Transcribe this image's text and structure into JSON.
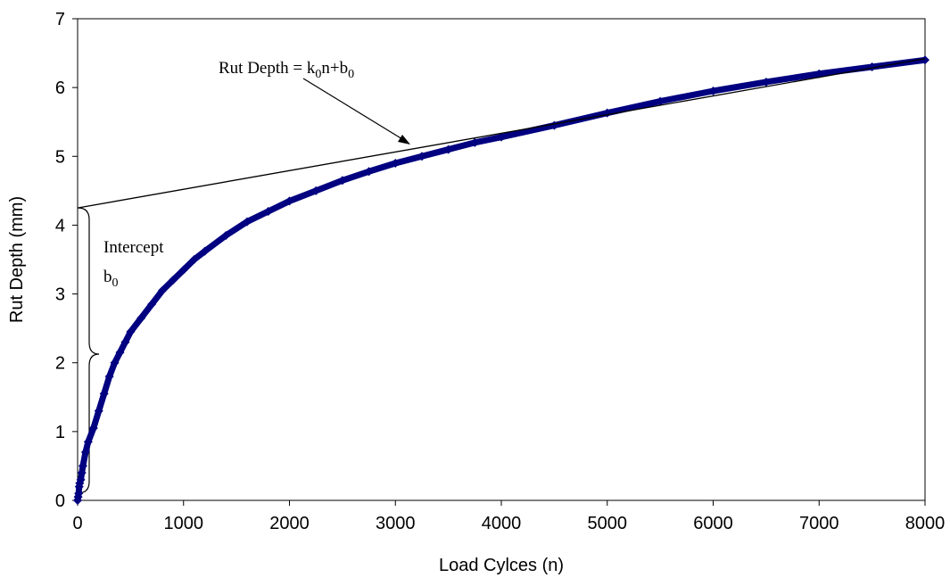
{
  "chart_data": {
    "type": "scatter",
    "x_label": "Load Cylces (n)",
    "y_label": "Rut Depth (mm)",
    "xlim": [
      0,
      8000
    ],
    "ylim": [
      0,
      7
    ],
    "xticks": [
      0,
      1000,
      2000,
      3000,
      4000,
      5000,
      6000,
      7000,
      8000
    ],
    "yticks": [
      0,
      1,
      2,
      3,
      4,
      5,
      6,
      7
    ],
    "grid": false,
    "series": [
      {
        "color": "#000080",
        "x": [
          0,
          5,
          10,
          15,
          20,
          30,
          40,
          50,
          75,
          100,
          150,
          200,
          250,
          300,
          350,
          400,
          450,
          500,
          600,
          700,
          800,
          900,
          1000,
          1100,
          1200,
          1400,
          1600,
          1800,
          2000,
          2250,
          2500,
          2750,
          3000,
          3250,
          3500,
          3750,
          4000,
          4500,
          5000,
          5500,
          6000,
          6500,
          7000,
          7500,
          8000
        ],
        "values": [
          0,
          0.05,
          0.1,
          0.2,
          0.25,
          0.3,
          0.4,
          0.5,
          0.7,
          0.85,
          1.05,
          1.3,
          1.55,
          1.8,
          2.0,
          2.15,
          2.3,
          2.45,
          2.65,
          2.85,
          3.05,
          3.2,
          3.35,
          3.5,
          3.62,
          3.85,
          4.05,
          4.2,
          4.35,
          4.5,
          4.65,
          4.78,
          4.9,
          5.0,
          5.1,
          5.2,
          5.28,
          5.45,
          5.63,
          5.8,
          5.95,
          6.08,
          6.2,
          6.3,
          6.4
        ]
      }
    ],
    "trendline": {
      "x": [
        0,
        8000
      ],
      "values": [
        4.25,
        6.42
      ],
      "color": "#000000"
    },
    "annotations": {
      "equation": [
        "Rut Depth = k",
        "0",
        "n+b",
        "0"
      ],
      "intercept": [
        "Intercept",
        "b",
        "0"
      ]
    }
  }
}
